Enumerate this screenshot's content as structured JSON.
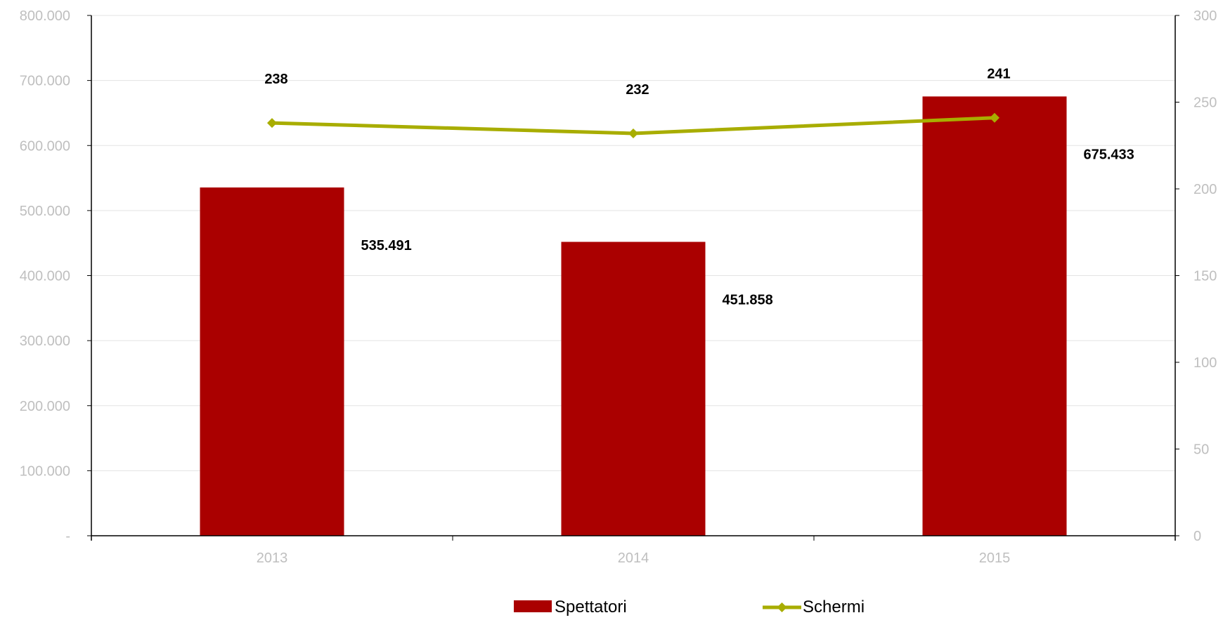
{
  "chart_data": {
    "type": "bar",
    "title": "",
    "xlabel": "",
    "ylabel": "",
    "categories": [
      "2013",
      "2014",
      "2015"
    ],
    "series": [
      {
        "name": "Spettatori",
        "type": "bar",
        "axis": "left",
        "values": [
          535491,
          451858,
          675433
        ],
        "labels": [
          "535.491",
          "451.858",
          "675.433"
        ],
        "color": "#aa0000"
      },
      {
        "name": "Schermi",
        "type": "line",
        "axis": "right",
        "values": [
          238,
          232,
          241
        ],
        "labels": [
          "238",
          "232",
          "241"
        ],
        "color": "#a8ad00",
        "marker": "diamond"
      }
    ],
    "ylim": [
      0,
      800000
    ],
    "y2lim": [
      0,
      300
    ],
    "y_ticks": [
      "-",
      "100.000",
      "200.000",
      "300.000",
      "400.000",
      "500.000",
      "600.000",
      "700.000",
      "800.000"
    ],
    "y2_ticks": [
      "0",
      "50",
      "100",
      "150",
      "200",
      "250",
      "300"
    ],
    "grid": true,
    "legend_position": "bottom"
  }
}
